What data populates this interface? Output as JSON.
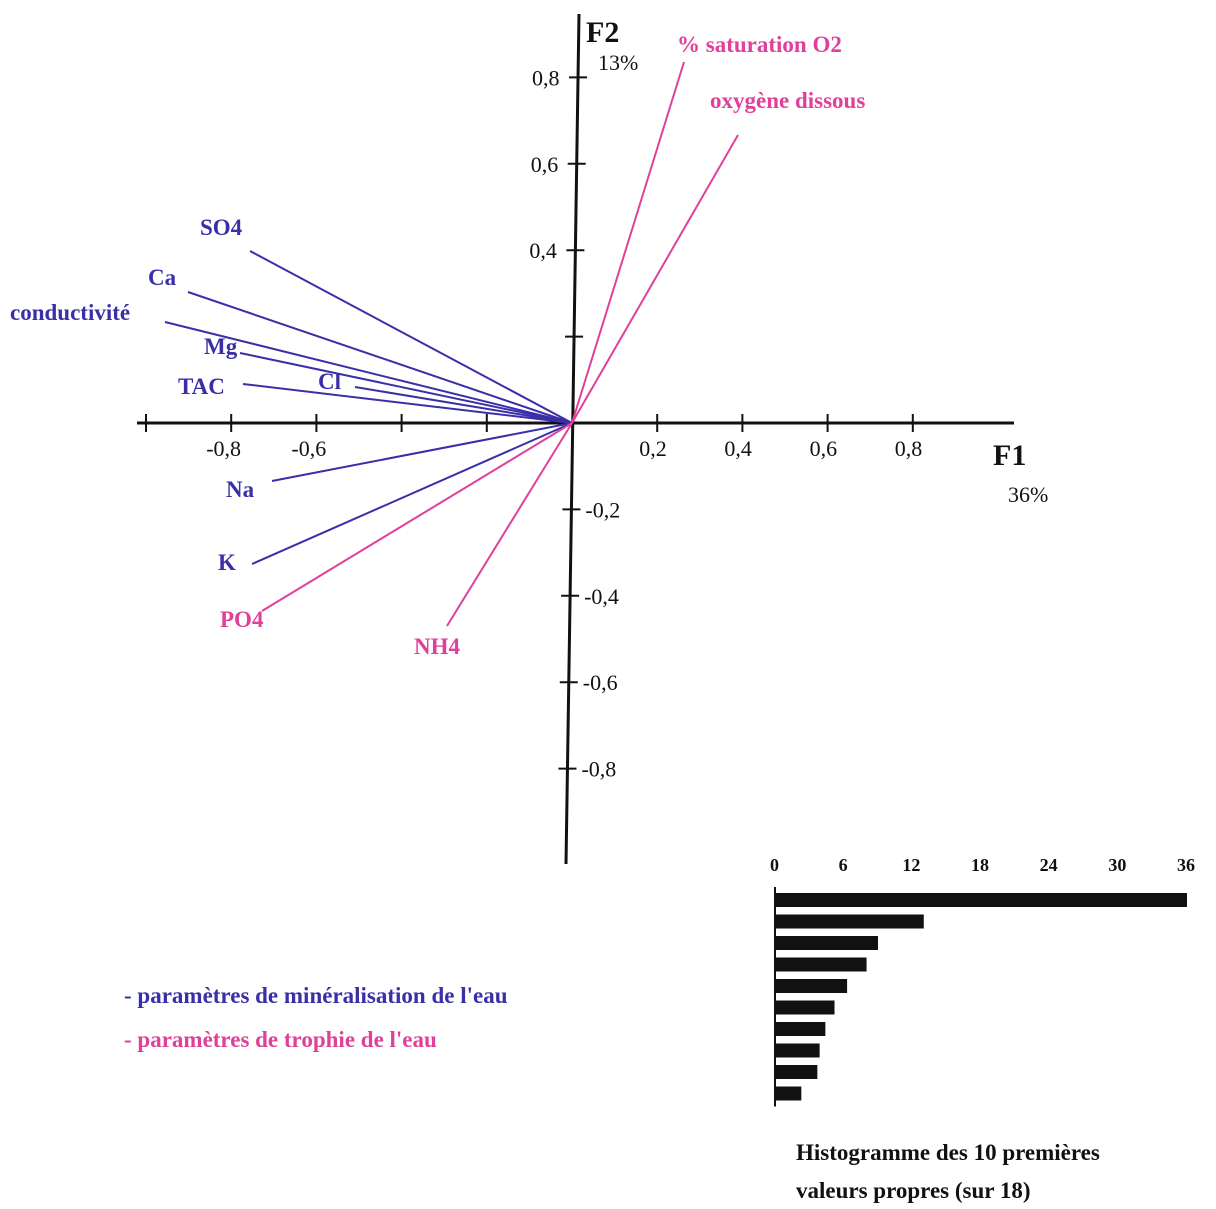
{
  "chart_data": [
    {
      "type": "biplot",
      "x_axis": {
        "name": "F1",
        "variance_label": "36%",
        "range": [
          -1.05,
          1.05
        ],
        "ticks": [
          -0.8,
          -0.6,
          0.2,
          0.4,
          0.6,
          0.8
        ],
        "tick_labels": [
          "-0,8",
          "-0,6",
          "0,2",
          "0,4",
          "0,6",
          "0,8"
        ]
      },
      "y_axis": {
        "name": "F2",
        "variance_label": "13%",
        "ticks": [
          0.8,
          0.6,
          0.4,
          0.2,
          -0.2,
          -0.4,
          -0.6,
          -0.8
        ],
        "tick_labels": [
          "0,8",
          "0,6",
          "0,4",
          "",
          "-0,2",
          "-0,4",
          "-0,6",
          "-0,8"
        ]
      },
      "colors": {
        "mineralisation": "#3a2fa8",
        "trophie": "#e0409a"
      },
      "vectors": [
        {
          "label": "SO4",
          "group": "mineralisation",
          "x": -0.76,
          "y": 0.4
        },
        {
          "label": "Ca",
          "group": "mineralisation",
          "x": -0.92,
          "y": 0.31
        },
        {
          "label": "conductivité",
          "group": "mineralisation",
          "x": -0.98,
          "y": 0.24
        },
        {
          "label": "Mg",
          "group": "mineralisation",
          "x": -0.82,
          "y": 0.16
        },
        {
          "label": "TAC",
          "group": "mineralisation",
          "x": -0.76,
          "y": 0.09
        },
        {
          "label": "Cl",
          "group": "mineralisation",
          "x": -0.5,
          "y": 0.09
        },
        {
          "label": "Na",
          "group": "mineralisation",
          "x": -0.69,
          "y": -0.14
        },
        {
          "label": "K",
          "group": "mineralisation",
          "x": -0.74,
          "y": -0.32
        },
        {
          "label": "PO4",
          "group": "trophie",
          "x": -0.71,
          "y": -0.44
        },
        {
          "label": "NH4",
          "group": "trophie",
          "x": -0.29,
          "y": -0.48
        },
        {
          "label": "% saturation O2",
          "group": "trophie",
          "x": 0.25,
          "y": 0.83
        },
        {
          "label": "oxygène dissous",
          "group": "trophie",
          "x": 0.37,
          "y": 0.67
        }
      ],
      "legend": [
        {
          "text": "- paramètres de minéralisation de l'eau",
          "group": "mineralisation"
        },
        {
          "text": "- paramètres de trophie de l'eau",
          "group": "trophie"
        }
      ]
    },
    {
      "type": "bar",
      "orientation": "horizontal",
      "xlim": [
        0,
        36
      ],
      "ticks": [
        "0",
        "6",
        "12",
        "18",
        "24",
        "30",
        "36"
      ],
      "values": [
        36,
        13,
        9,
        8,
        6.3,
        5.2,
        4.4,
        3.9,
        3.7,
        2.3
      ],
      "caption_line1": "Histogramme des 10 premières",
      "caption_line2": "valeurs propres  (sur 18)"
    }
  ]
}
